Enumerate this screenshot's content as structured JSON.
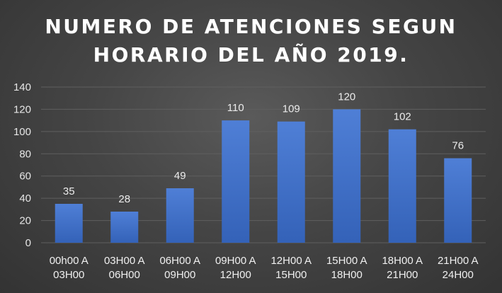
{
  "chart_data": {
    "type": "bar",
    "title_lines": [
      "NUMERO DE ATENCIONES SEGUN",
      "HORARIO DEL AÑO 2019."
    ],
    "categories": [
      [
        "00h00 A",
        "03H00"
      ],
      [
        "03H00 A",
        "06H00"
      ],
      [
        "06H00 A",
        "09H00"
      ],
      [
        "09H00 A",
        "12H00"
      ],
      [
        "12H00 A",
        "15H00"
      ],
      [
        "15H00 A",
        "18H00"
      ],
      [
        "18H00 A",
        "21H00"
      ],
      [
        "21H00 A",
        "24H00"
      ]
    ],
    "values": [
      35,
      28,
      49,
      110,
      109,
      120,
      102,
      76
    ],
    "data_labels": [
      "35",
      "28",
      "49",
      "110",
      "109",
      "120",
      "102",
      "76"
    ],
    "yticks": [
      "0",
      "20",
      "40",
      "60",
      "80",
      "100",
      "120",
      "140"
    ],
    "ylim": [
      0,
      140
    ],
    "grid": true,
    "colors": {
      "bar_top": "#4f7fd6",
      "bar_bottom": "#3462b8",
      "grid": "#5f5f5f",
      "text": "#e6e6e6"
    }
  }
}
